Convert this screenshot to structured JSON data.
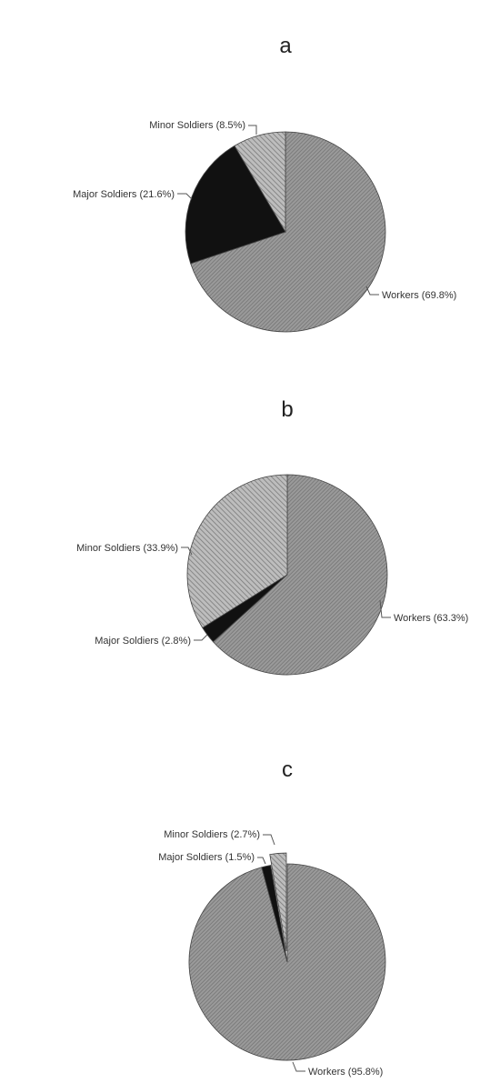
{
  "colors": {
    "workers": "#8a8a8a",
    "minor_soldiers": "#a9a9a9",
    "major_soldiers": "#111111",
    "outline": "#444444"
  },
  "chart_data": [
    {
      "type": "pie",
      "title": "a",
      "slices": [
        {
          "label": "Workers (69.8%)",
          "value": 69.8,
          "kind": "workers"
        },
        {
          "label": "Major Soldiers (21.6%)",
          "value": 21.6,
          "kind": "major"
        },
        {
          "label": "Minor Soldiers (8.5%)",
          "value": 8.5,
          "kind": "minor"
        }
      ]
    },
    {
      "type": "pie",
      "title": "b",
      "slices": [
        {
          "label": "Workers (63.3%)",
          "value": 63.3,
          "kind": "workers"
        },
        {
          "label": "Major Soldiers (2.8%)",
          "value": 2.8,
          "kind": "major"
        },
        {
          "label": "Minor Soldiers (33.9%)",
          "value": 33.9,
          "kind": "minor"
        }
      ]
    },
    {
      "type": "pie",
      "title": "c",
      "slices": [
        {
          "label": "Workers (95.8%)",
          "value": 95.8,
          "kind": "workers"
        },
        {
          "label": "Major Soldiers (1.5%)",
          "value": 1.5,
          "kind": "major"
        },
        {
          "label": "Minor Soldiers (2.7%)",
          "value": 2.7,
          "kind": "minor"
        }
      ]
    }
  ]
}
